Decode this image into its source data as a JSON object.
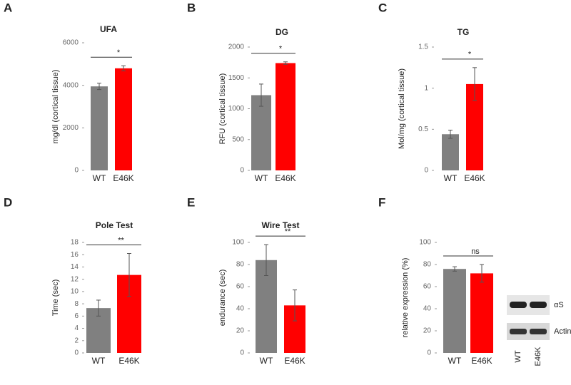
{
  "chart_data": [
    {
      "type": "bar",
      "panel": "A",
      "title": "UFA",
      "ylabel": "mg/dl (cortical tissue)",
      "categories": [
        "WT",
        "E46K"
      ],
      "values": [
        3950,
        4800
      ],
      "errors": [
        150,
        120
      ],
      "colors": [
        "#808080",
        "#ff0000"
      ],
      "ylim": [
        0,
        6000
      ],
      "yticks": [
        0,
        2000,
        4000,
        6000
      ],
      "annotation": "*"
    },
    {
      "type": "bar",
      "panel": "B",
      "title": "DG",
      "ylabel": "RFU (cortical tissue)",
      "categories": [
        "WT",
        "E46K"
      ],
      "values": [
        1220,
        1740
      ],
      "errors": [
        180,
        20
      ],
      "colors": [
        "#808080",
        "#ff0000"
      ],
      "ylim": [
        0,
        2000
      ],
      "yticks": [
        0,
        500,
        1000,
        1500,
        2000
      ],
      "annotation": "*"
    },
    {
      "type": "bar",
      "panel": "C",
      "title": "TG",
      "ylabel": "Mol/mg (cortical tissue)",
      "categories": [
        "WT",
        "E46K"
      ],
      "values": [
        0.44,
        1.05
      ],
      "errors": [
        0.05,
        0.2
      ],
      "colors": [
        "#808080",
        "#ff0000"
      ],
      "ylim": [
        0,
        1.5
      ],
      "yticks": [
        0,
        0.5,
        1,
        1.5
      ],
      "annotation": "*"
    },
    {
      "type": "bar",
      "panel": "D",
      "title": "Pole Test",
      "ylabel": "Time (sec)",
      "categories": [
        "WT",
        "E46K"
      ],
      "values": [
        7.3,
        12.7
      ],
      "errors": [
        1.3,
        3.5
      ],
      "colors": [
        "#808080",
        "#ff0000"
      ],
      "ylim": [
        0,
        18
      ],
      "yticks": [
        0,
        2,
        4,
        6,
        8,
        10,
        12,
        14,
        16,
        18
      ],
      "annotation": "**"
    },
    {
      "type": "bar",
      "panel": "E",
      "title": "Wire Test",
      "ylabel": "endurance (sec)",
      "categories": [
        "WT",
        "E46K"
      ],
      "values": [
        84,
        43
      ],
      "errors": [
        14,
        14
      ],
      "colors": [
        "#808080",
        "#ff0000"
      ],
      "ylim": [
        0,
        100
      ],
      "yticks": [
        0,
        20,
        40,
        60,
        80,
        100
      ],
      "annotation": "**"
    },
    {
      "type": "bar",
      "panel": "F",
      "ylabel": "relative expression (%)",
      "categories": [
        "WT",
        "E46K"
      ],
      "values": [
        76,
        72
      ],
      "errors": [
        2,
        8
      ],
      "colors": [
        "#808080",
        "#ff0000"
      ],
      "ylim": [
        0,
        100
      ],
      "yticks": [
        0,
        20,
        40,
        60,
        80,
        100
      ],
      "annotation": "ns",
      "blot": {
        "bands": [
          "αS",
          "Actin"
        ],
        "lanes": [
          "WT",
          "E46K"
        ]
      }
    }
  ]
}
